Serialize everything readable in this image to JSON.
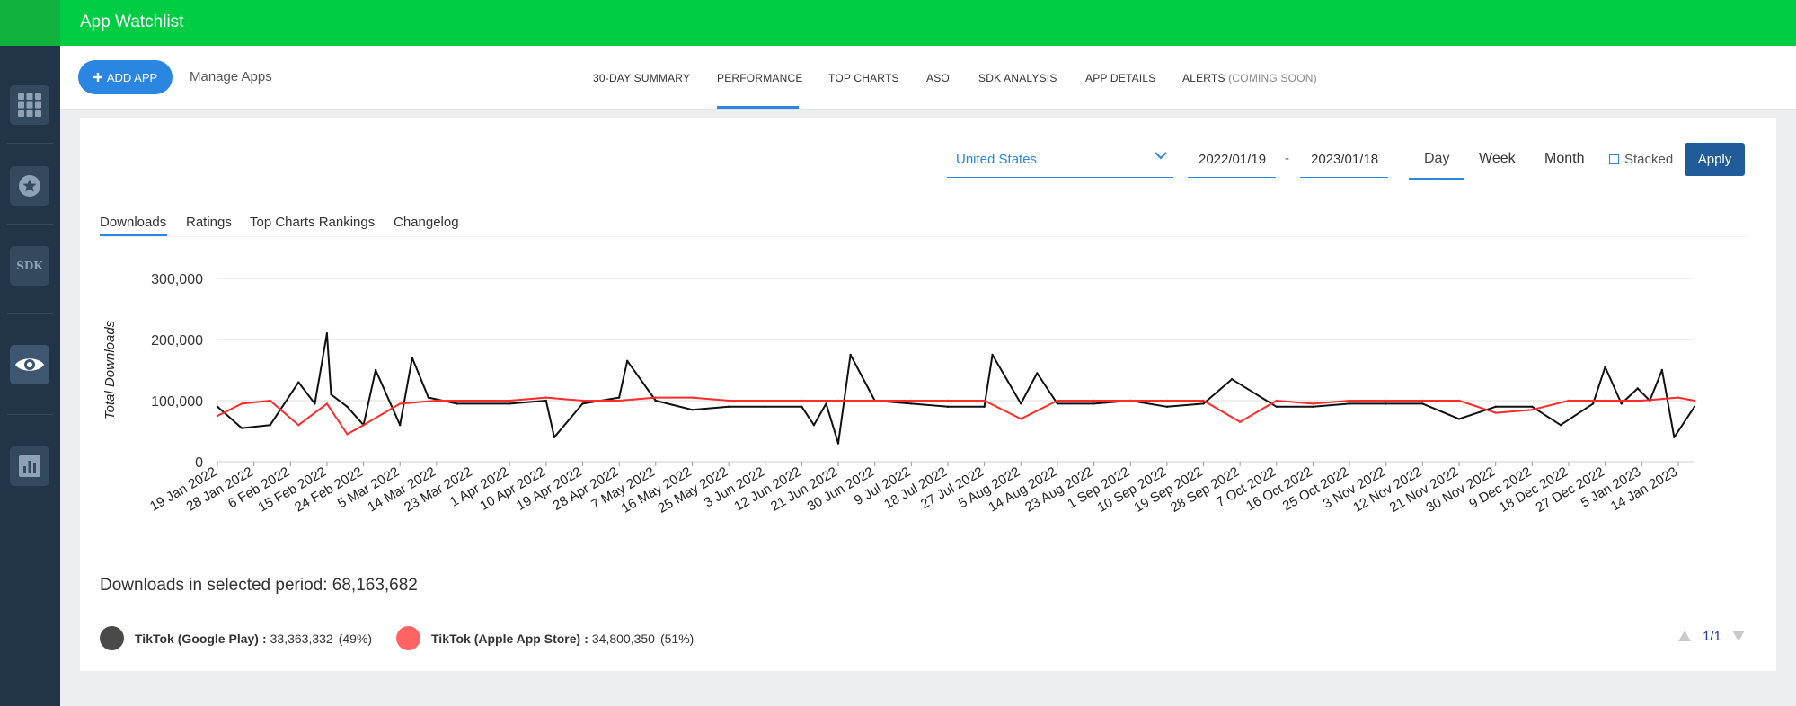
{
  "app": {
    "title": "App Watchlist"
  },
  "sidebar": {
    "items": [
      {
        "icon": "grid-icon"
      },
      {
        "icon": "star-icon"
      },
      {
        "icon": "sdk-icon",
        "label": "SDK"
      },
      {
        "icon": "eye-icon",
        "active": true
      },
      {
        "icon": "bar-chart-icon"
      }
    ]
  },
  "toolbar": {
    "add_label": "ADD APP",
    "add_icon": "plus-icon",
    "manage_label": "Manage Apps"
  },
  "nav": {
    "tabs": [
      {
        "label": "30-DAY SUMMARY"
      },
      {
        "label": "PERFORMANCE",
        "active": true
      },
      {
        "label": "TOP CHARTS"
      },
      {
        "label": "ASO"
      },
      {
        "label": "SDK ANALYSIS"
      },
      {
        "label": "APP DETAILS"
      },
      {
        "label": "ALERTS",
        "suffix": "(COMING SOON)"
      }
    ]
  },
  "filters": {
    "country": "United States",
    "date_from": "2022/01/19",
    "date_sep": "-",
    "date_to": "2023/01/18",
    "periods": [
      "Day",
      "Week",
      "Month"
    ],
    "selected_period": "Day",
    "stacked_label": "Stacked",
    "stacked_checked": false,
    "apply_label": "Apply"
  },
  "chart_tabs": [
    {
      "label": "Downloads",
      "active": true
    },
    {
      "label": "Ratings"
    },
    {
      "label": "Top Charts Rankings"
    },
    {
      "label": "Changelog"
    }
  ],
  "chart_data": {
    "type": "line",
    "ylabel": "Total Downloads",
    "xlabel": "",
    "ylim": [
      0,
      300000
    ],
    "yticks": [
      "0",
      "100,000",
      "200,000",
      "300,000"
    ],
    "grid": true,
    "x_start": "2022-01-19",
    "x_end": "2023-01-18",
    "x_ticks": [
      "19 Jan 2022",
      "28 Jan 2022",
      "6 Feb 2022",
      "15 Feb 2022",
      "24 Feb 2022",
      "5 Mar 2022",
      "14 Mar 2022",
      "23 Mar 2022",
      "1 Apr 2022",
      "10 Apr 2022",
      "19 Apr 2022",
      "28 Apr 2022",
      "7 May 2022",
      "16 May 2022",
      "25 May 2022",
      "3 Jun 2022",
      "12 Jun 2022",
      "21 Jun 2022",
      "30 Jun 2022",
      "9 Jul 2022",
      "18 Jul 2022",
      "27 Jul 2022",
      "5 Aug 2022",
      "14 Aug 2022",
      "23 Aug 2022",
      "1 Sep 2022",
      "10 Sep 2022",
      "19 Sep 2022",
      "28 Sep 2022",
      "7 Oct 2022",
      "16 Oct 2022",
      "25 Oct 2022",
      "3 Nov 2022",
      "12 Nov 2022",
      "21 Nov 2022",
      "30 Nov 2022",
      "9 Dec 2022",
      "18 Dec 2022",
      "27 Dec 2022",
      "5 Jan 2023",
      "14 Jan 2023"
    ],
    "series": [
      {
        "name": "TikTok (Google Play)",
        "color": "#111111",
        "x": [
          "19 Jan 2022",
          "25 Jan 2022",
          "1 Feb 2022",
          "8 Feb 2022",
          "12 Feb 2022",
          "15 Feb 2022",
          "16 Feb 2022",
          "20 Feb 2022",
          "24 Feb 2022",
          "27 Feb 2022",
          "5 Mar 2022",
          "8 Mar 2022",
          "12 Mar 2022",
          "19 Mar 2022",
          "1 Apr 2022",
          "10 Apr 2022",
          "12 Apr 2022",
          "19 Apr 2022",
          "28 Apr 2022",
          "30 Apr 2022",
          "7 May 2022",
          "16 May 2022",
          "25 May 2022",
          "3 Jun 2022",
          "12 Jun 2022",
          "15 Jun 2022",
          "18 Jun 2022",
          "21 Jun 2022",
          "24 Jun 2022",
          "30 Jun 2022",
          "9 Jul 2022",
          "18 Jul 2022",
          "27 Jul 2022",
          "29 Jul 2022",
          "5 Aug 2022",
          "9 Aug 2022",
          "14 Aug 2022",
          "23 Aug 2022",
          "1 Sep 2022",
          "10 Sep 2022",
          "19 Sep 2022",
          "26 Sep 2022",
          "7 Oct 2022",
          "16 Oct 2022",
          "25 Oct 2022",
          "3 Nov 2022",
          "12 Nov 2022",
          "21 Nov 2022",
          "30 Nov 2022",
          "9 Dec 2022",
          "16 Dec 2022",
          "24 Dec 2022",
          "27 Dec 2022",
          "31 Dec 2022",
          "4 Jan 2023",
          "7 Jan 2023",
          "10 Jan 2023",
          "13 Jan 2023",
          "18 Jan 2023"
        ],
        "values": [
          90000,
          55000,
          60000,
          130000,
          95000,
          210000,
          110000,
          90000,
          60000,
          150000,
          60000,
          170000,
          105000,
          95000,
          95000,
          100000,
          40000,
          95000,
          105000,
          165000,
          100000,
          85000,
          90000,
          90000,
          90000,
          60000,
          95000,
          30000,
          175000,
          100000,
          95000,
          90000,
          90000,
          175000,
          95000,
          145000,
          95000,
          95000,
          100000,
          90000,
          95000,
          135000,
          90000,
          90000,
          95000,
          95000,
          95000,
          70000,
          90000,
          90000,
          60000,
          95000,
          155000,
          95000,
          120000,
          100000,
          150000,
          40000,
          90000
        ]
      },
      {
        "name": "TikTok (Apple App Store)",
        "color": "#ff2a2a",
        "x": [
          "19 Jan 2022",
          "25 Jan 2022",
          "1 Feb 2022",
          "8 Feb 2022",
          "15 Feb 2022",
          "20 Feb 2022",
          "24 Feb 2022",
          "5 Mar 2022",
          "14 Mar 2022",
          "23 Mar 2022",
          "1 Apr 2022",
          "10 Apr 2022",
          "19 Apr 2022",
          "28 Apr 2022",
          "7 May 2022",
          "16 May 2022",
          "25 May 2022",
          "3 Jun 2022",
          "12 Jun 2022",
          "21 Jun 2022",
          "30 Jun 2022",
          "9 Jul 2022",
          "18 Jul 2022",
          "27 Jul 2022",
          "5 Aug 2022",
          "14 Aug 2022",
          "23 Aug 2022",
          "1 Sep 2022",
          "10 Sep 2022",
          "19 Sep 2022",
          "28 Sep 2022",
          "7 Oct 2022",
          "16 Oct 2022",
          "25 Oct 2022",
          "3 Nov 2022",
          "12 Nov 2022",
          "21 Nov 2022",
          "30 Nov 2022",
          "9 Dec 2022",
          "18 Dec 2022",
          "27 Dec 2022",
          "5 Jan 2023",
          "14 Jan 2023",
          "18 Jan 2023"
        ],
        "values": [
          75000,
          95000,
          100000,
          60000,
          95000,
          45000,
          60000,
          95000,
          100000,
          100000,
          100000,
          105000,
          100000,
          100000,
          105000,
          105000,
          100000,
          100000,
          100000,
          100000,
          100000,
          100000,
          100000,
          100000,
          70000,
          100000,
          100000,
          100000,
          100000,
          100000,
          65000,
          100000,
          95000,
          100000,
          100000,
          100000,
          100000,
          80000,
          85000,
          100000,
          100000,
          100000,
          105000,
          100000
        ]
      }
    ]
  },
  "summary": {
    "label": "Downloads in selected period:",
    "total": "68,163,682",
    "items": [
      {
        "name": "TikTok (Google Play)",
        "value": "33,363,332",
        "pct": "(49%)",
        "color": "#4a4a48"
      },
      {
        "name": "TikTok (Apple App Store)",
        "value": "34,800,350",
        "pct": "(51%)",
        "color": "#ff6464"
      }
    ],
    "pager": "1/1"
  }
}
